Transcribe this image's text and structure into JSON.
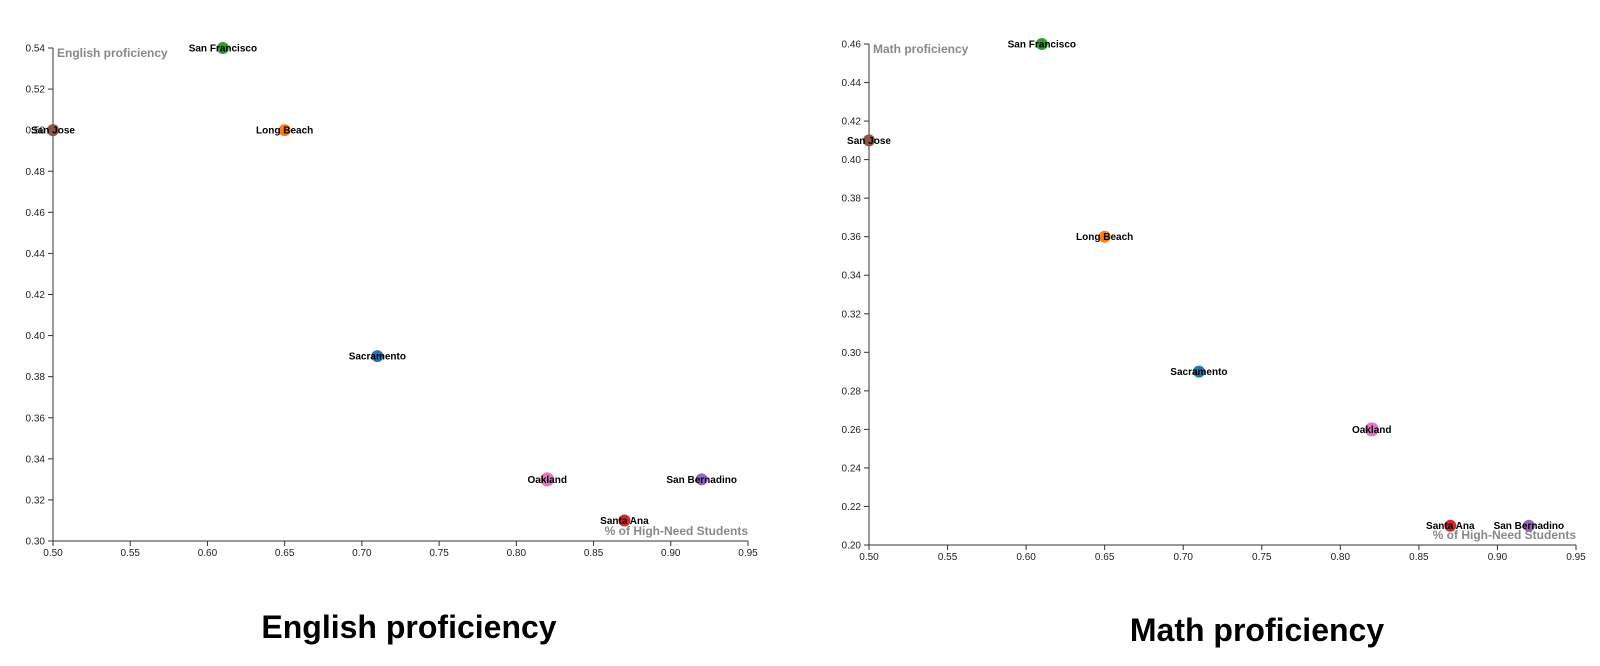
{
  "chart_data": [
    {
      "type": "scatter",
      "title": "English proficiency",
      "xlabel": "% of High-Need Students",
      "ylabel": "English proficiency",
      "xlim": [
        0.5,
        0.95
      ],
      "ylim": [
        0.3,
        0.54
      ],
      "x_ticks": [
        "0.50",
        "0.55",
        "0.60",
        "0.65",
        "0.70",
        "0.75",
        "0.80",
        "0.85",
        "0.90",
        "0.95"
      ],
      "y_ticks": [
        "0.30",
        "0.32",
        "0.34",
        "0.36",
        "0.38",
        "0.40",
        "0.42",
        "0.44",
        "0.46",
        "0.48",
        "0.50",
        "0.52",
        "0.54"
      ],
      "grid": false,
      "points": [
        {
          "label": "San Francisco",
          "x": 0.61,
          "y": 0.54,
          "color": "#2ca02c"
        },
        {
          "label": "San Jose",
          "x": 0.5,
          "y": 0.5,
          "color": "#8c564b"
        },
        {
          "label": "Long Beach",
          "x": 0.65,
          "y": 0.5,
          "color": "#ff7f0e"
        },
        {
          "label": "Sacramento",
          "x": 0.71,
          "y": 0.39,
          "color": "#1f77b4"
        },
        {
          "label": "Oakland",
          "x": 0.82,
          "y": 0.33,
          "color": "#e377c2"
        },
        {
          "label": "San Bernadino",
          "x": 0.92,
          "y": 0.33,
          "color": "#9467bd"
        },
        {
          "label": "Santa Ana",
          "x": 0.87,
          "y": 0.31,
          "color": "#d62728"
        }
      ]
    },
    {
      "type": "scatter",
      "title": "Math proficiency",
      "xlabel": "% of High-Need Students",
      "ylabel": "Math proficiency",
      "xlim": [
        0.5,
        0.95
      ],
      "ylim": [
        0.2,
        0.46
      ],
      "x_ticks": [
        "0.50",
        "0.55",
        "0.60",
        "0.65",
        "0.70",
        "0.75",
        "0.80",
        "0.85",
        "0.90",
        "0.95"
      ],
      "y_ticks": [
        "0.20",
        "0.22",
        "0.24",
        "0.26",
        "0.28",
        "0.30",
        "0.32",
        "0.34",
        "0.36",
        "0.38",
        "0.40",
        "0.42",
        "0.44",
        "0.46"
      ],
      "grid": false,
      "points": [
        {
          "label": "San Francisco",
          "x": 0.61,
          "y": 0.46,
          "color": "#2ca02c"
        },
        {
          "label": "San Jose",
          "x": 0.5,
          "y": 0.41,
          "color": "#8c564b"
        },
        {
          "label": "Long Beach",
          "x": 0.65,
          "y": 0.36,
          "color": "#ff7f0e"
        },
        {
          "label": "Sacramento",
          "x": 0.71,
          "y": 0.29,
          "color": "#1f77b4"
        },
        {
          "label": "Oakland",
          "x": 0.82,
          "y": 0.26,
          "color": "#e377c2"
        },
        {
          "label": "Santa Ana",
          "x": 0.87,
          "y": 0.21,
          "color": "#d62728"
        },
        {
          "label": "San Bernadino",
          "x": 0.92,
          "y": 0.21,
          "color": "#9467bd"
        }
      ]
    }
  ]
}
